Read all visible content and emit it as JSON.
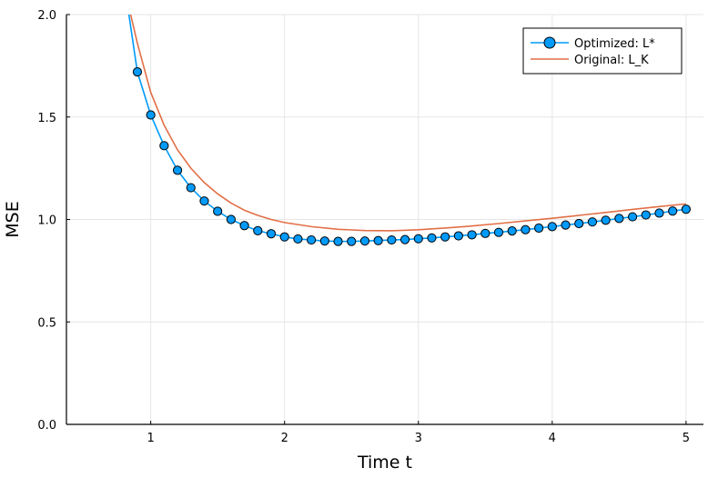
{
  "chart_data": {
    "type": "line",
    "xlabel": "Time t",
    "ylabel": "MSE",
    "xlim": [
      0.37,
      5.13
    ],
    "ylim": [
      0.0,
      2.0
    ],
    "x_ticks": [
      1,
      2,
      3,
      4,
      5
    ],
    "x_tick_labels": [
      "1",
      "2",
      "3",
      "4",
      "5"
    ],
    "y_ticks": [
      0.0,
      0.5,
      1.0,
      1.5,
      2.0
    ],
    "y_tick_labels": [
      "0.0",
      "0.5",
      "1.0",
      "1.5",
      "2.0"
    ],
    "grid": true,
    "legend_position": "top-right",
    "series": [
      {
        "name": "Optimized: L*",
        "style": "line+markers",
        "color": "#009af9",
        "line_points": {
          "x": [
            0.83,
            0.9,
            1.0,
            1.1,
            1.2,
            1.3,
            1.4,
            1.5,
            1.6,
            1.7,
            1.8,
            1.9,
            2.0,
            2.1,
            2.2,
            2.3,
            2.4,
            2.5,
            2.6,
            2.7,
            2.8,
            2.9,
            3.0,
            3.1,
            3.2,
            3.3,
            3.4,
            3.5,
            3.6,
            3.7,
            3.8,
            3.9,
            4.0,
            4.1,
            4.2,
            4.3,
            4.4,
            4.5,
            4.6,
            4.7,
            4.8,
            4.9,
            5.0
          ],
          "y": [
            2.03,
            1.72,
            1.51,
            1.36,
            1.24,
            1.155,
            1.09,
            1.04,
            1.0,
            0.97,
            0.945,
            0.93,
            0.915,
            0.905,
            0.9,
            0.895,
            0.893,
            0.893,
            0.895,
            0.897,
            0.9,
            0.902,
            0.906,
            0.91,
            0.915,
            0.92,
            0.925,
            0.932,
            0.937,
            0.944,
            0.95,
            0.958,
            0.965,
            0.973,
            0.98,
            0.988,
            0.996,
            1.005,
            1.013,
            1.022,
            1.031,
            1.041,
            1.05
          ]
        },
        "markers": {
          "x": [
            0.9,
            1.0,
            1.1,
            1.2,
            1.3,
            1.4,
            1.5,
            1.6,
            1.7,
            1.8,
            1.9,
            2.0,
            2.1,
            2.2,
            2.3,
            2.4,
            2.5,
            2.6,
            2.7,
            2.8,
            2.9,
            3.0,
            3.1,
            3.2,
            3.3,
            3.4,
            3.5,
            3.6,
            3.7,
            3.8,
            3.9,
            4.0,
            4.1,
            4.2,
            4.3,
            4.4,
            4.5,
            4.6,
            4.7,
            4.8,
            4.9,
            5.0
          ],
          "y": [
            1.72,
            1.51,
            1.36,
            1.24,
            1.155,
            1.09,
            1.04,
            1.0,
            0.97,
            0.945,
            0.93,
            0.915,
            0.905,
            0.9,
            0.895,
            0.893,
            0.893,
            0.895,
            0.897,
            0.9,
            0.902,
            0.906,
            0.91,
            0.915,
            0.92,
            0.925,
            0.932,
            0.937,
            0.944,
            0.95,
            0.958,
            0.965,
            0.973,
            0.98,
            0.988,
            0.996,
            1.005,
            1.013,
            1.022,
            1.031,
            1.041,
            1.05
          ]
        }
      },
      {
        "name": "Original: L_K",
        "style": "line",
        "color": "#e26f46",
        "line_points": {
          "x": [
            0.85,
            0.9,
            1.0,
            1.1,
            1.2,
            1.3,
            1.4,
            1.5,
            1.6,
            1.7,
            1.8,
            1.9,
            2.0,
            2.2,
            2.4,
            2.6,
            2.8,
            3.0,
            3.2,
            3.4,
            3.6,
            3.8,
            4.0,
            4.2,
            4.4,
            4.6,
            4.8,
            5.0
          ],
          "y": [
            2.0,
            1.86,
            1.62,
            1.46,
            1.34,
            1.25,
            1.18,
            1.125,
            1.08,
            1.045,
            1.02,
            1.0,
            0.985,
            0.965,
            0.952,
            0.946,
            0.945,
            0.95,
            0.958,
            0.968,
            0.98,
            0.993,
            1.006,
            1.02,
            1.034,
            1.049,
            1.063,
            1.076
          ]
        }
      }
    ]
  }
}
